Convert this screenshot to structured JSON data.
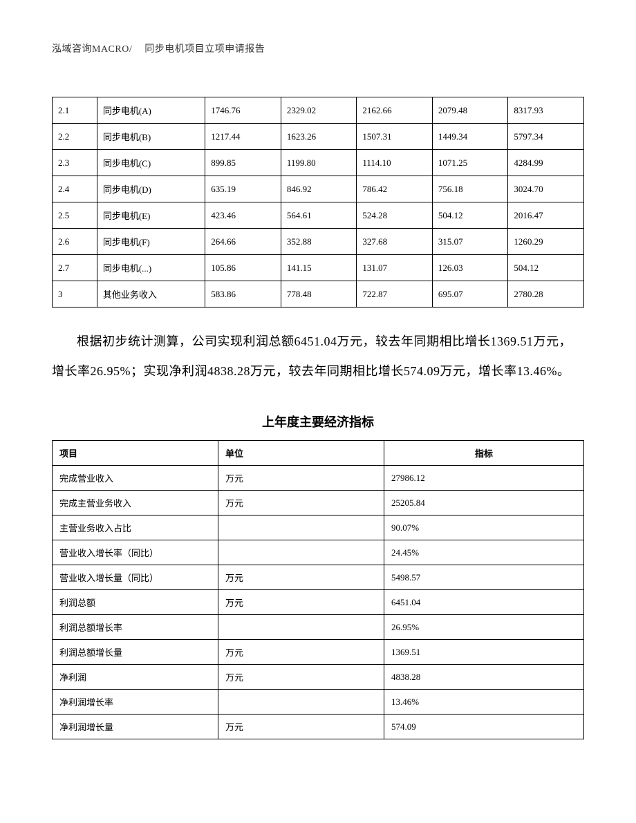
{
  "header": {
    "left": "泓域咨询MACRO/",
    "right": "同步电机项目立项申请报告"
  },
  "table1": {
    "rows": [
      {
        "idx": "2.1",
        "name": "同步电机(A)",
        "v1": "1746.76",
        "v2": "2329.02",
        "v3": "2162.66",
        "v4": "2079.48",
        "v5": "8317.93"
      },
      {
        "idx": "2.2",
        "name": "同步电机(B)",
        "v1": "1217.44",
        "v2": "1623.26",
        "v3": "1507.31",
        "v4": "1449.34",
        "v5": "5797.34"
      },
      {
        "idx": "2.3",
        "name": "同步电机(C)",
        "v1": "899.85",
        "v2": "1199.80",
        "v3": "1114.10",
        "v4": "1071.25",
        "v5": "4284.99"
      },
      {
        "idx": "2.4",
        "name": "同步电机(D)",
        "v1": "635.19",
        "v2": "846.92",
        "v3": "786.42",
        "v4": "756.18",
        "v5": "3024.70"
      },
      {
        "idx": "2.5",
        "name": "同步电机(E)",
        "v1": "423.46",
        "v2": "564.61",
        "v3": "524.28",
        "v4": "504.12",
        "v5": "2016.47"
      },
      {
        "idx": "2.6",
        "name": "同步电机(F)",
        "v1": "264.66",
        "v2": "352.88",
        "v3": "327.68",
        "v4": "315.07",
        "v5": "1260.29"
      },
      {
        "idx": "2.7",
        "name": "同步电机(...)",
        "v1": "105.86",
        "v2": "141.15",
        "v3": "131.07",
        "v4": "126.03",
        "v5": "504.12"
      },
      {
        "idx": "3",
        "name": "其他业务收入",
        "v1": "583.86",
        "v2": "778.48",
        "v3": "722.87",
        "v4": "695.07",
        "v5": "2780.28"
      }
    ]
  },
  "paragraph": "根据初步统计测算，公司实现利润总额6451.04万元，较去年同期相比增长1369.51万元，增长率26.95%；实现净利润4838.28万元，较去年同期相比增长574.09万元，增长率13.46%。",
  "section_title": "上年度主要经济指标",
  "table2": {
    "headers": {
      "item": "项目",
      "unit": "单位",
      "metric": "指标"
    },
    "rows": [
      {
        "item": "完成营业收入",
        "unit": "万元",
        "metric": "27986.12"
      },
      {
        "item": "完成主营业务收入",
        "unit": "万元",
        "metric": "25205.84"
      },
      {
        "item": "主营业务收入占比",
        "unit": "",
        "metric": "90.07%"
      },
      {
        "item": "营业收入增长率（同比）",
        "unit": "",
        "metric": "24.45%"
      },
      {
        "item": "营业收入增长量（同比）",
        "unit": "万元",
        "metric": "5498.57"
      },
      {
        "item": "利润总额",
        "unit": "万元",
        "metric": "6451.04"
      },
      {
        "item": "利润总额增长率",
        "unit": "",
        "metric": "26.95%"
      },
      {
        "item": "利润总额增长量",
        "unit": "万元",
        "metric": "1369.51"
      },
      {
        "item": "净利润",
        "unit": "万元",
        "metric": "4838.28"
      },
      {
        "item": "净利润增长率",
        "unit": "",
        "metric": "13.46%"
      },
      {
        "item": "净利润增长量",
        "unit": "万元",
        "metric": "574.09"
      }
    ]
  }
}
